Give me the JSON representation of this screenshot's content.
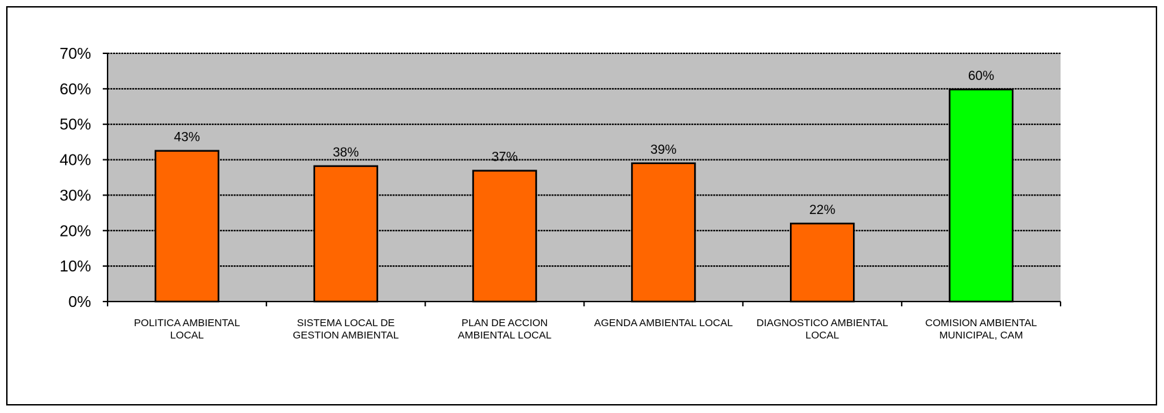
{
  "chart_data": {
    "type": "bar",
    "title": "",
    "xlabel": "",
    "ylabel": "",
    "ylim": [
      0,
      0.7
    ],
    "yticks": [
      0,
      0.1,
      0.2,
      0.3,
      0.4,
      0.5,
      0.6,
      0.7
    ],
    "ytick_labels": [
      "0%",
      "10%",
      "20%",
      "30%",
      "40%",
      "50%",
      "60%",
      "70%"
    ],
    "categories": [
      [
        "POLITICA AMBIENTAL",
        "LOCAL"
      ],
      [
        "SISTEMA LOCAL DE",
        "GESTION AMBIENTAL"
      ],
      [
        "PLAN DE ACCION",
        "AMBIENTAL LOCAL"
      ],
      [
        "AGENDA AMBIENTAL  LOCAL"
      ],
      [
        "DIAGNOSTICO AMBIENTAL",
        "LOCAL"
      ],
      [
        "COMISION AMBIENTAL",
        "MUNICIPAL, CAM"
      ]
    ],
    "values": [
      0.425,
      0.382,
      0.369,
      0.39,
      0.22,
      0.598
    ],
    "data_labels": [
      "43%",
      "38%",
      "37%",
      "39%",
      "22%",
      "60%"
    ],
    "bar_colors": [
      "#ff6600",
      "#ff6600",
      "#ff6600",
      "#ff6600",
      "#ff6600",
      "#00ff00"
    ],
    "plot_background": "#c0c0c0",
    "grid": true,
    "legend": "none"
  }
}
